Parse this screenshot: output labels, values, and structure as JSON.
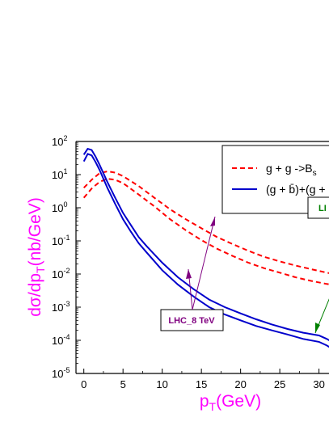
{
  "colors": {
    "axis_title": "#ff00ff",
    "curve_gg": "#ff0000",
    "curve_gb": "#0000cc",
    "annotation_purple": "#800080",
    "annotation_green": "#008000"
  },
  "chart_data": {
    "type": "line",
    "xlabel": "p",
    "xlabel_sub": "T",
    "xlabel_unit": "(GeV)",
    "ylabel": "dσ/dp",
    "ylabel_sub": "T",
    "ylabel_unit": "(nb/GeV)",
    "xlim": [
      -1,
      32
    ],
    "ylim_log10": [
      -5,
      2
    ],
    "y_scale": "log",
    "grid": false,
    "legend_placement": "top-right",
    "x_ticks": [
      0,
      5,
      10,
      15,
      20,
      25,
      30
    ],
    "x_tick_labels": [
      "0",
      "5",
      "10",
      "15",
      "20",
      "25",
      "30"
    ],
    "y_tick_exponents": [
      -5,
      -4,
      -3,
      -2,
      -1,
      0,
      1,
      2
    ],
    "y_tick_base": "10",
    "series": [
      {
        "name": "g + g ->B",
        "name_sub": "s",
        "style": "dashed",
        "color": "#ff0000",
        "x": [
          0,
          1,
          2,
          3,
          4,
          5,
          7,
          9,
          11,
          13,
          15,
          17,
          19,
          21,
          23,
          25,
          27,
          29,
          31,
          32
        ],
        "y": [
          4,
          7,
          11,
          12.5,
          11.5,
          9,
          4.5,
          2,
          0.9,
          0.45,
          0.24,
          0.13,
          0.08,
          0.05,
          0.033,
          0.024,
          0.018,
          0.014,
          0.011,
          0.0098
        ]
      },
      {
        "name": "g + g ->B",
        "name_sub": "s",
        "style": "dashed",
        "color": "#ff0000",
        "x": [
          0,
          1,
          2,
          3,
          4,
          5,
          7,
          9,
          11,
          13,
          15,
          17,
          19,
          21,
          23,
          25,
          27,
          29,
          31,
          32
        ],
        "y": [
          2,
          3.8,
          6,
          7.5,
          7,
          5.5,
          2.5,
          1.1,
          0.45,
          0.21,
          0.105,
          0.058,
          0.035,
          0.022,
          0.015,
          0.011,
          0.008,
          0.0062,
          0.005,
          0.0046
        ]
      },
      {
        "name": "(g + b̄)+(g + ",
        "style": "solid",
        "color": "#0000cc",
        "x": [
          0,
          0.5,
          1,
          1.5,
          2,
          3,
          4,
          5,
          6,
          7,
          8,
          10,
          12,
          14,
          16,
          18,
          20,
          22,
          24,
          26,
          28,
          30,
          31,
          32
        ],
        "y": [
          40,
          60,
          55,
          35,
          20,
          6,
          2,
          0.7,
          0.3,
          0.13,
          0.07,
          0.022,
          0.008,
          0.0035,
          0.0017,
          0.001,
          0.00065,
          0.00043,
          0.0003,
          0.00022,
          0.00017,
          0.00014,
          0.00011,
          8e-05
        ]
      },
      {
        "name": "(g + b̄)+(g + ",
        "style": "solid",
        "color": "#0000cc",
        "x": [
          0,
          0.5,
          1,
          1.5,
          2,
          3,
          4,
          5,
          6,
          7,
          8,
          10,
          12,
          14,
          16,
          18,
          20,
          22,
          24,
          26,
          28,
          30,
          31,
          32
        ],
        "y": [
          25,
          42,
          38,
          24,
          14,
          4,
          1.3,
          0.45,
          0.19,
          0.085,
          0.045,
          0.013,
          0.0048,
          0.0021,
          0.001,
          0.0006,
          0.0004,
          0.00027,
          0.0002,
          0.00015,
          0.00011,
          9e-05,
          7e-05,
          5e-05
        ]
      }
    ],
    "legend": [
      {
        "label": "g + g ->B",
        "label_sub": "s",
        "style": "dashed",
        "color": "#ff0000"
      },
      {
        "label": "(g + b̄)+(g + ",
        "style": "solid",
        "color": "#0000cc"
      }
    ],
    "annotations": [
      {
        "text": "LHC_8 TeV",
        "color": "#800080"
      },
      {
        "text": "LI",
        "color": "#008000"
      }
    ]
  }
}
